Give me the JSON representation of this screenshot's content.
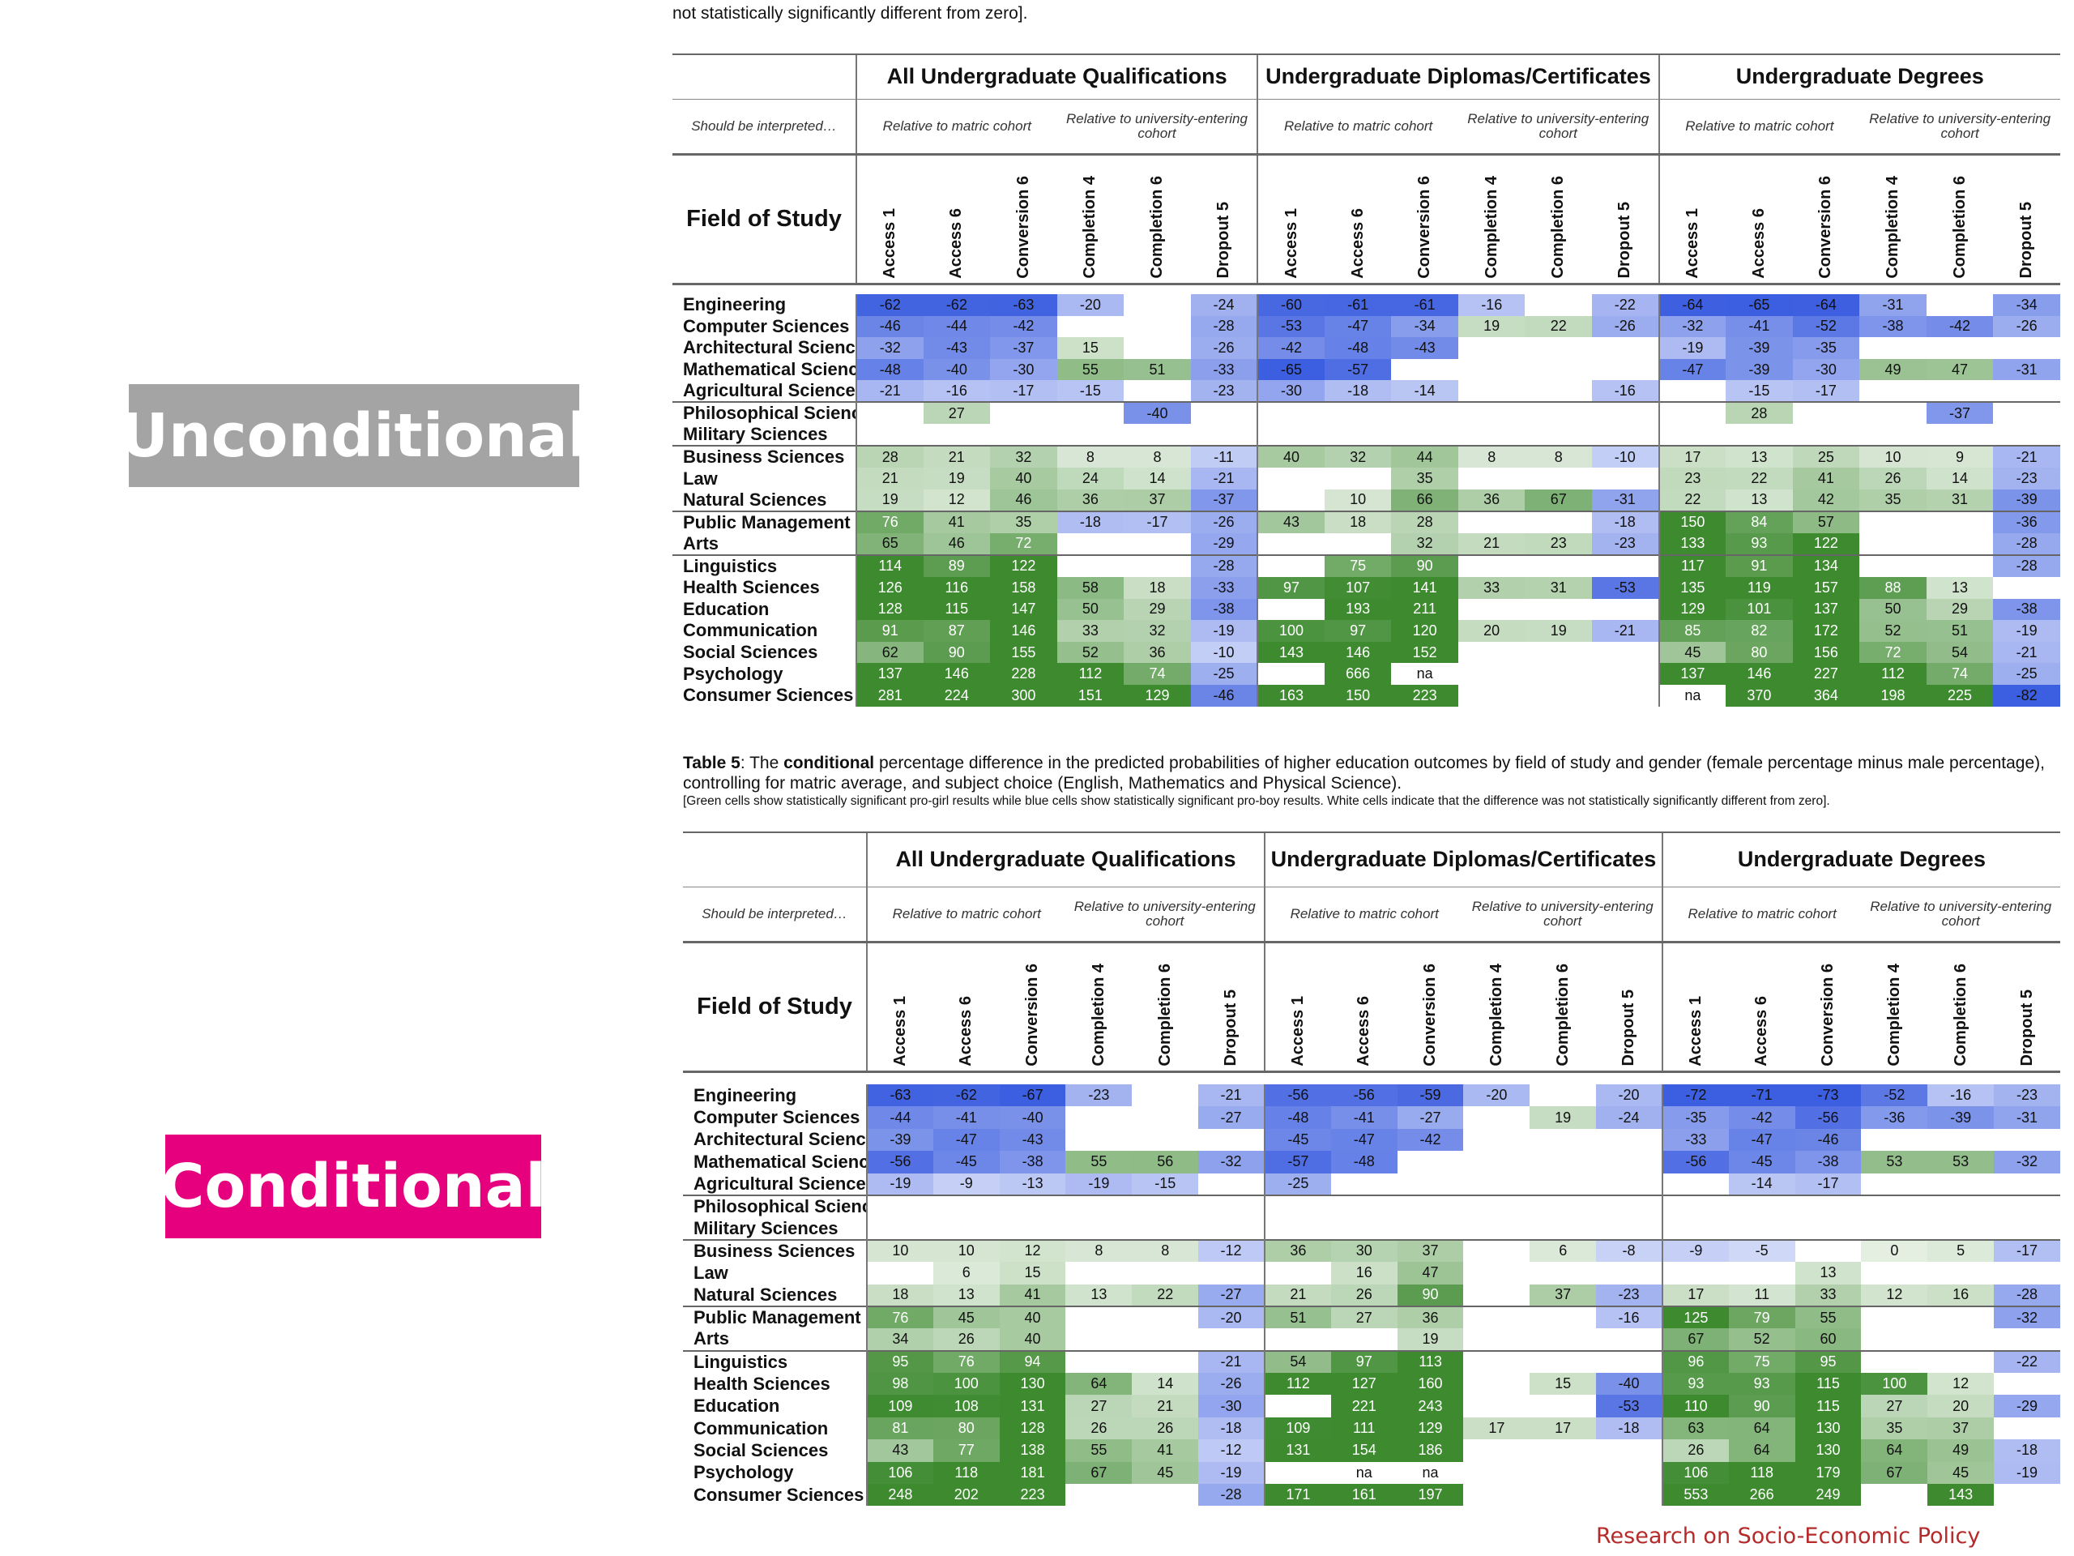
{
  "labels": {
    "unconditional": "Unconditional",
    "conditional": "Conditional"
  },
  "top_note": "not statistically significantly different from zero].",
  "caption5": {
    "prefix": "Table 5",
    "part1": ": The ",
    "bold": "conditional",
    "part2": " percentage difference in the predicted probabilities of higher education outcomes by field of study and gender (female percentage minus male percentage), controlling for matric average, and subject choice (English, Mathematics and Physical Science).",
    "note": "[Green cells show statistically significant pro-girl results while blue cells show statistically significant pro-boy results. White cells indicate that the difference was not statistically significantly different from zero]."
  },
  "footer": "Research on Socio-Economic Policy",
  "header": {
    "groups": [
      "All Undergraduate Qualifications",
      "Undergraduate Diplomas/Certificates",
      "Undergraduate Degrees"
    ],
    "interpret": "Should be interpreted…",
    "rel_matric": "Relative to matric cohort",
    "rel_univ": "Relative to university-entering cohort",
    "field_of_study": "Field of Study",
    "columns": [
      "Access 1",
      "Access 6",
      "Conversion 6",
      "Completion 4",
      "Completion 6",
      "Dropout 5"
    ]
  },
  "colors": {
    "blue": "#3c5ee0",
    "green": "#3d8a2f"
  },
  "rows": [
    "Engineering",
    "Computer Sciences",
    "Architectural Sciences",
    "Mathematical Sciences",
    "Agricultural Sciences",
    "Philosophical Sciences",
    "Military Sciences",
    "Business Sciences",
    "Law",
    "Natural Sciences",
    "Public Management Sciences",
    "Arts",
    "Linguistics",
    "Health Sciences",
    "Education",
    "Communication",
    "Social Sciences",
    "Psychology",
    "Consumer Sciences"
  ],
  "group_starts": [
    5,
    7,
    10,
    12
  ],
  "unconditional": [
    [
      "-62",
      "-62",
      "-63",
      "-20",
      "",
      "-24",
      "-60",
      "-61",
      "-61",
      "-16",
      "",
      "-22",
      "-64",
      "-65",
      "-64",
      "-31",
      "",
      "-34"
    ],
    [
      "-46",
      "-44",
      "-42",
      "",
      "",
      "-28",
      "-53",
      "-47",
      "-34",
      "19",
      "22",
      "-26",
      "-32",
      "-41",
      "-52",
      "-38",
      "-42",
      "-26"
    ],
    [
      "-32",
      "-43",
      "-37",
      "15",
      "",
      "-26",
      "-42",
      "-48",
      "-43",
      "",
      "",
      "",
      "-19",
      "-39",
      "-35",
      "",
      "",
      ""
    ],
    [
      "-48",
      "-40",
      "-30",
      "55",
      "51",
      "-33",
      "-65",
      "-57",
      "",
      "",
      "",
      "",
      "-47",
      "-39",
      "-30",
      "49",
      "47",
      "-31"
    ],
    [
      "-21",
      "-16",
      "-17",
      "-15",
      "",
      "-23",
      "-30",
      "-18",
      "-14",
      "",
      "",
      "-16",
      "",
      "-15",
      "-17",
      "",
      "",
      ""
    ],
    [
      "",
      "27",
      "",
      "",
      "-40",
      "",
      "",
      "",
      "",
      "",
      "",
      "",
      "",
      "28",
      "",
      "",
      "-37",
      ""
    ],
    [
      "",
      "",
      "",
      "",
      "",
      "",
      "",
      "",
      "",
      "",
      "",
      "",
      "",
      "",
      "",
      "",
      "",
      ""
    ],
    [
      "28",
      "21",
      "32",
      "8",
      "8",
      "-11",
      "40",
      "32",
      "44",
      "8",
      "8",
      "-10",
      "17",
      "13",
      "25",
      "10",
      "9",
      "-21"
    ],
    [
      "21",
      "19",
      "40",
      "24",
      "14",
      "-21",
      "",
      "",
      "35",
      "",
      "",
      "",
      "23",
      "22",
      "41",
      "26",
      "14",
      "-23"
    ],
    [
      "19",
      "12",
      "46",
      "36",
      "37",
      "-37",
      "",
      "10",
      "66",
      "36",
      "67",
      "-31",
      "22",
      "13",
      "42",
      "35",
      "31",
      "-39"
    ],
    [
      "76",
      "41",
      "35",
      "-18",
      "-17",
      "-26",
      "43",
      "18",
      "28",
      "",
      "",
      "-18",
      "150",
      "84",
      "57",
      "",
      "",
      "-36"
    ],
    [
      "65",
      "46",
      "72",
      "",
      "",
      "-29",
      "",
      "",
      "32",
      "21",
      "23",
      "-23",
      "133",
      "93",
      "122",
      "",
      "",
      "-28"
    ],
    [
      "114",
      "89",
      "122",
      "",
      "",
      "-28",
      "",
      "75",
      "90",
      "",
      "",
      "",
      "117",
      "91",
      "134",
      "",
      "",
      "-28"
    ],
    [
      "126",
      "116",
      "158",
      "58",
      "18",
      "-33",
      "97",
      "107",
      "141",
      "33",
      "31",
      "-53",
      "135",
      "119",
      "157",
      "88",
      "13",
      ""
    ],
    [
      "128",
      "115",
      "147",
      "50",
      "29",
      "-38",
      "",
      "193",
      "211",
      "",
      "",
      "",
      "129",
      "101",
      "137",
      "50",
      "29",
      "-38"
    ],
    [
      "91",
      "87",
      "146",
      "33",
      "32",
      "-19",
      "100",
      "97",
      "120",
      "20",
      "19",
      "-21",
      "85",
      "82",
      "172",
      "52",
      "51",
      "-19"
    ],
    [
      "62",
      "90",
      "155",
      "52",
      "36",
      "-10",
      "143",
      "146",
      "152",
      "",
      "",
      "",
      "45",
      "80",
      "156",
      "72",
      "54",
      "-21"
    ],
    [
      "137",
      "146",
      "228",
      "112",
      "74",
      "-25",
      "",
      "666",
      "na",
      "",
      "",
      "",
      "137",
      "146",
      "227",
      "112",
      "74",
      "-25"
    ],
    [
      "281",
      "224",
      "300",
      "151",
      "129",
      "-46",
      "163",
      "150",
      "223",
      "",
      "",
      "",
      "na",
      "370",
      "364",
      "198",
      "225",
      "-82"
    ]
  ],
  "conditional": [
    [
      "-63",
      "-62",
      "-67",
      "-23",
      "",
      "-21",
      "-56",
      "-56",
      "-59",
      "-20",
      "",
      "-20",
      "-72",
      "-71",
      "-73",
      "-52",
      "-16",
      "-23"
    ],
    [
      "-44",
      "-41",
      "-40",
      "",
      "",
      "-27",
      "-48",
      "-41",
      "-27",
      "",
      "19",
      "-24",
      "-35",
      "-42",
      "-56",
      "-36",
      "-39",
      "-31"
    ],
    [
      "-39",
      "-47",
      "-43",
      "",
      "",
      "",
      "-45",
      "-47",
      "-42",
      "",
      "",
      "",
      "-33",
      "-47",
      "-46",
      "",
      "",
      ""
    ],
    [
      "-56",
      "-45",
      "-38",
      "55",
      "56",
      "-32",
      "-57",
      "-48",
      "",
      "",
      "",
      "",
      "-56",
      "-45",
      "-38",
      "53",
      "53",
      "-32"
    ],
    [
      "-19",
      "-9",
      "-13",
      "-19",
      "-15",
      "",
      "-25",
      "",
      "",
      "",
      "",
      "",
      "",
      "-14",
      "-17",
      "",
      "",
      ""
    ],
    [
      "",
      "",
      "",
      "",
      "",
      "",
      "",
      "",
      "",
      "",
      "",
      "",
      "",
      "",
      "",
      "",
      "",
      ""
    ],
    [
      "",
      "",
      "",
      "",
      "",
      "",
      "",
      "",
      "",
      "",
      "",
      "",
      "",
      "",
      "",
      "",
      "",
      ""
    ],
    [
      "10",
      "10",
      "12",
      "8",
      "8",
      "-12",
      "36",
      "30",
      "37",
      "",
      "6",
      "-8",
      "-9",
      "-5",
      "",
      "0",
      "5",
      "-17"
    ],
    [
      "",
      "6",
      "15",
      "",
      "",
      "",
      "",
      "16",
      "47",
      "",
      "",
      "",
      "",
      "",
      "13",
      "",
      "",
      ""
    ],
    [
      "18",
      "13",
      "41",
      "13",
      "22",
      "-27",
      "21",
      "26",
      "90",
      "",
      "37",
      "-23",
      "17",
      "11",
      "33",
      "12",
      "16",
      "-28"
    ],
    [
      "76",
      "45",
      "40",
      "",
      "",
      "-20",
      "51",
      "27",
      "36",
      "",
      "",
      "-16",
      "125",
      "79",
      "55",
      "",
      "",
      "-32"
    ],
    [
      "34",
      "26",
      "40",
      "",
      "",
      "",
      "",
      "",
      "19",
      "",
      "",
      "",
      "67",
      "52",
      "60",
      "",
      "",
      ""
    ],
    [
      "95",
      "76",
      "94",
      "",
      "",
      "-21",
      "54",
      "97",
      "113",
      "",
      "",
      "",
      "96",
      "75",
      "95",
      "",
      "",
      "-22"
    ],
    [
      "98",
      "100",
      "130",
      "64",
      "14",
      "-26",
      "112",
      "127",
      "160",
      "",
      "15",
      "-40",
      "93",
      "93",
      "115",
      "100",
      "12",
      ""
    ],
    [
      "109",
      "108",
      "131",
      "27",
      "21",
      "-30",
      "",
      "221",
      "243",
      "",
      "",
      "-53",
      "110",
      "90",
      "115",
      "27",
      "20",
      "-29"
    ],
    [
      "81",
      "80",
      "128",
      "26",
      "26",
      "-18",
      "109",
      "111",
      "129",
      "17",
      "17",
      "-18",
      "63",
      "64",
      "130",
      "35",
      "37",
      ""
    ],
    [
      "43",
      "77",
      "138",
      "55",
      "41",
      "-12",
      "131",
      "154",
      "186",
      "",
      "",
      "",
      "26",
      "64",
      "130",
      "64",
      "49",
      "-18"
    ],
    [
      "106",
      "118",
      "181",
      "67",
      "45",
      "-19",
      "",
      "na",
      "na",
      "",
      "",
      "",
      "106",
      "118",
      "179",
      "67",
      "45",
      "-19"
    ],
    [
      "248",
      "202",
      "223",
      "",
      "",
      "-28",
      "171",
      "161",
      "197",
      "",
      "",
      "",
      "553",
      "266",
      "249",
      "",
      "143",
      ""
    ]
  ]
}
